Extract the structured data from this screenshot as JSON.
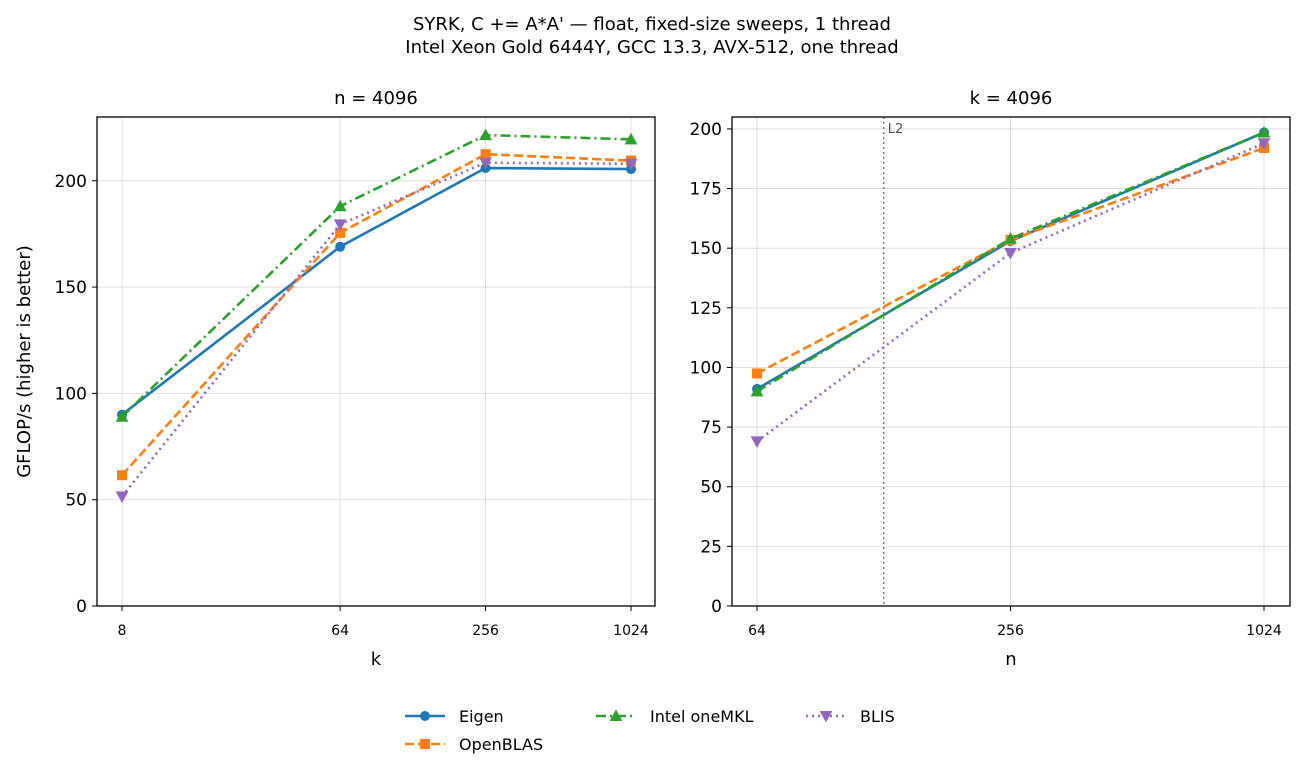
{
  "figure": {
    "title_line1": "SYRK, C += A*A' — float, fixed-size sweeps, 1 thread",
    "title_line2": "Intel Xeon Gold 6444Y, GCC 13.3, AVX-512, one thread"
  },
  "series_styles": [
    {
      "name": "Eigen",
      "color": "#1f77b4",
      "marker": "circle",
      "dash": "solid"
    },
    {
      "name": "OpenBLAS",
      "color": "#ff7f0e",
      "marker": "square",
      "dash": "dashed"
    },
    {
      "name": "Intel oneMKL",
      "color": "#2ca02c",
      "marker": "triangle-up",
      "dash": "dashdot"
    },
    {
      "name": "BLIS",
      "color": "#9467bd",
      "marker": "triangle-down",
      "dash": "dotted"
    }
  ],
  "legend": {
    "placement": "bottom-center",
    "entries": [
      "Eigen",
      "OpenBLAS",
      "Intel oneMKL",
      "BLIS"
    ]
  },
  "chart_data": [
    {
      "type": "line",
      "title": "n = 4096",
      "xlabel": "k",
      "ylabel": "GFLOP/s (higher is better)",
      "xscale": "log2",
      "x": [
        8,
        64,
        256,
        1024
      ],
      "xticks": [
        "8",
        "64",
        "256",
        "1024"
      ],
      "xlim": [
        8,
        1024
      ],
      "ylim": [
        0,
        230
      ],
      "yticks": [
        0,
        50,
        100,
        150,
        200
      ],
      "grid": true,
      "series": [
        {
          "name": "Eigen",
          "values": [
            90,
            169,
            206,
            205.5
          ]
        },
        {
          "name": "OpenBLAS",
          "values": [
            61.5,
            175.5,
            212.5,
            209.5
          ]
        },
        {
          "name": "Intel oneMKL",
          "values": [
            89,
            188,
            221.5,
            219.5
          ]
        },
        {
          "name": "BLIS",
          "values": [
            51.5,
            179.5,
            208.5,
            208
          ]
        }
      ]
    },
    {
      "type": "line",
      "title": "k = 4096",
      "xlabel": "n",
      "ylabel": "",
      "xscale": "log2",
      "x": [
        64,
        256,
        1024
      ],
      "xticks": [
        "64",
        "256",
        "1024"
      ],
      "xlim": [
        64,
        1024
      ],
      "ylim": [
        0,
        205
      ],
      "yticks": [
        0,
        25,
        50,
        75,
        100,
        125,
        150,
        175,
        200
      ],
      "grid": true,
      "vline": {
        "x": 128,
        "label": "L2"
      },
      "series": [
        {
          "name": "Eigen",
          "values": [
            91,
            153,
            198.5
          ]
        },
        {
          "name": "OpenBLAS",
          "values": [
            97.5,
            153.5,
            192
          ]
        },
        {
          "name": "Intel oneMKL",
          "values": [
            90,
            154,
            198.5
          ]
        },
        {
          "name": "BLIS",
          "values": [
            69,
            148,
            194
          ]
        }
      ]
    }
  ]
}
